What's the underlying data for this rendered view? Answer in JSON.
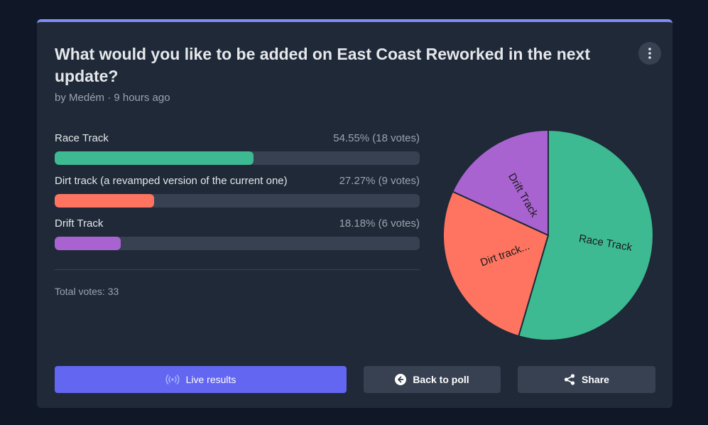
{
  "poll": {
    "title": "What would you like to be added on East Coast Reworked in the next update?",
    "meta": "by Medém · 9 hours ago",
    "options": [
      {
        "label": "Race Track",
        "stat": "54.55% (18 votes)",
        "percent": 54.55,
        "votes": 18,
        "color": "#3dba91"
      },
      {
        "label": "Dirt track (a revamped version of the current one)",
        "stat": "27.27% (9 votes)",
        "percent": 27.27,
        "votes": 9,
        "color": "#ff7461"
      },
      {
        "label": "Drift Track",
        "stat": "18.18% (6 votes)",
        "percent": 18.18,
        "votes": 6,
        "color": "#a963d1"
      }
    ],
    "total": "Total votes: 33"
  },
  "pie": {
    "labels": [
      "Race Track",
      "Dirt track...",
      "Drift Track"
    ]
  },
  "buttons": {
    "live": "Live results",
    "back": "Back to poll",
    "share": "Share"
  },
  "icons": {
    "menu": "more-vertical-icon",
    "live": "broadcast-icon",
    "back": "arrow-left-circle-icon",
    "share": "share-icon"
  },
  "colors": {
    "accent": "#6366f1",
    "card_top_border": "#818cf8"
  }
}
